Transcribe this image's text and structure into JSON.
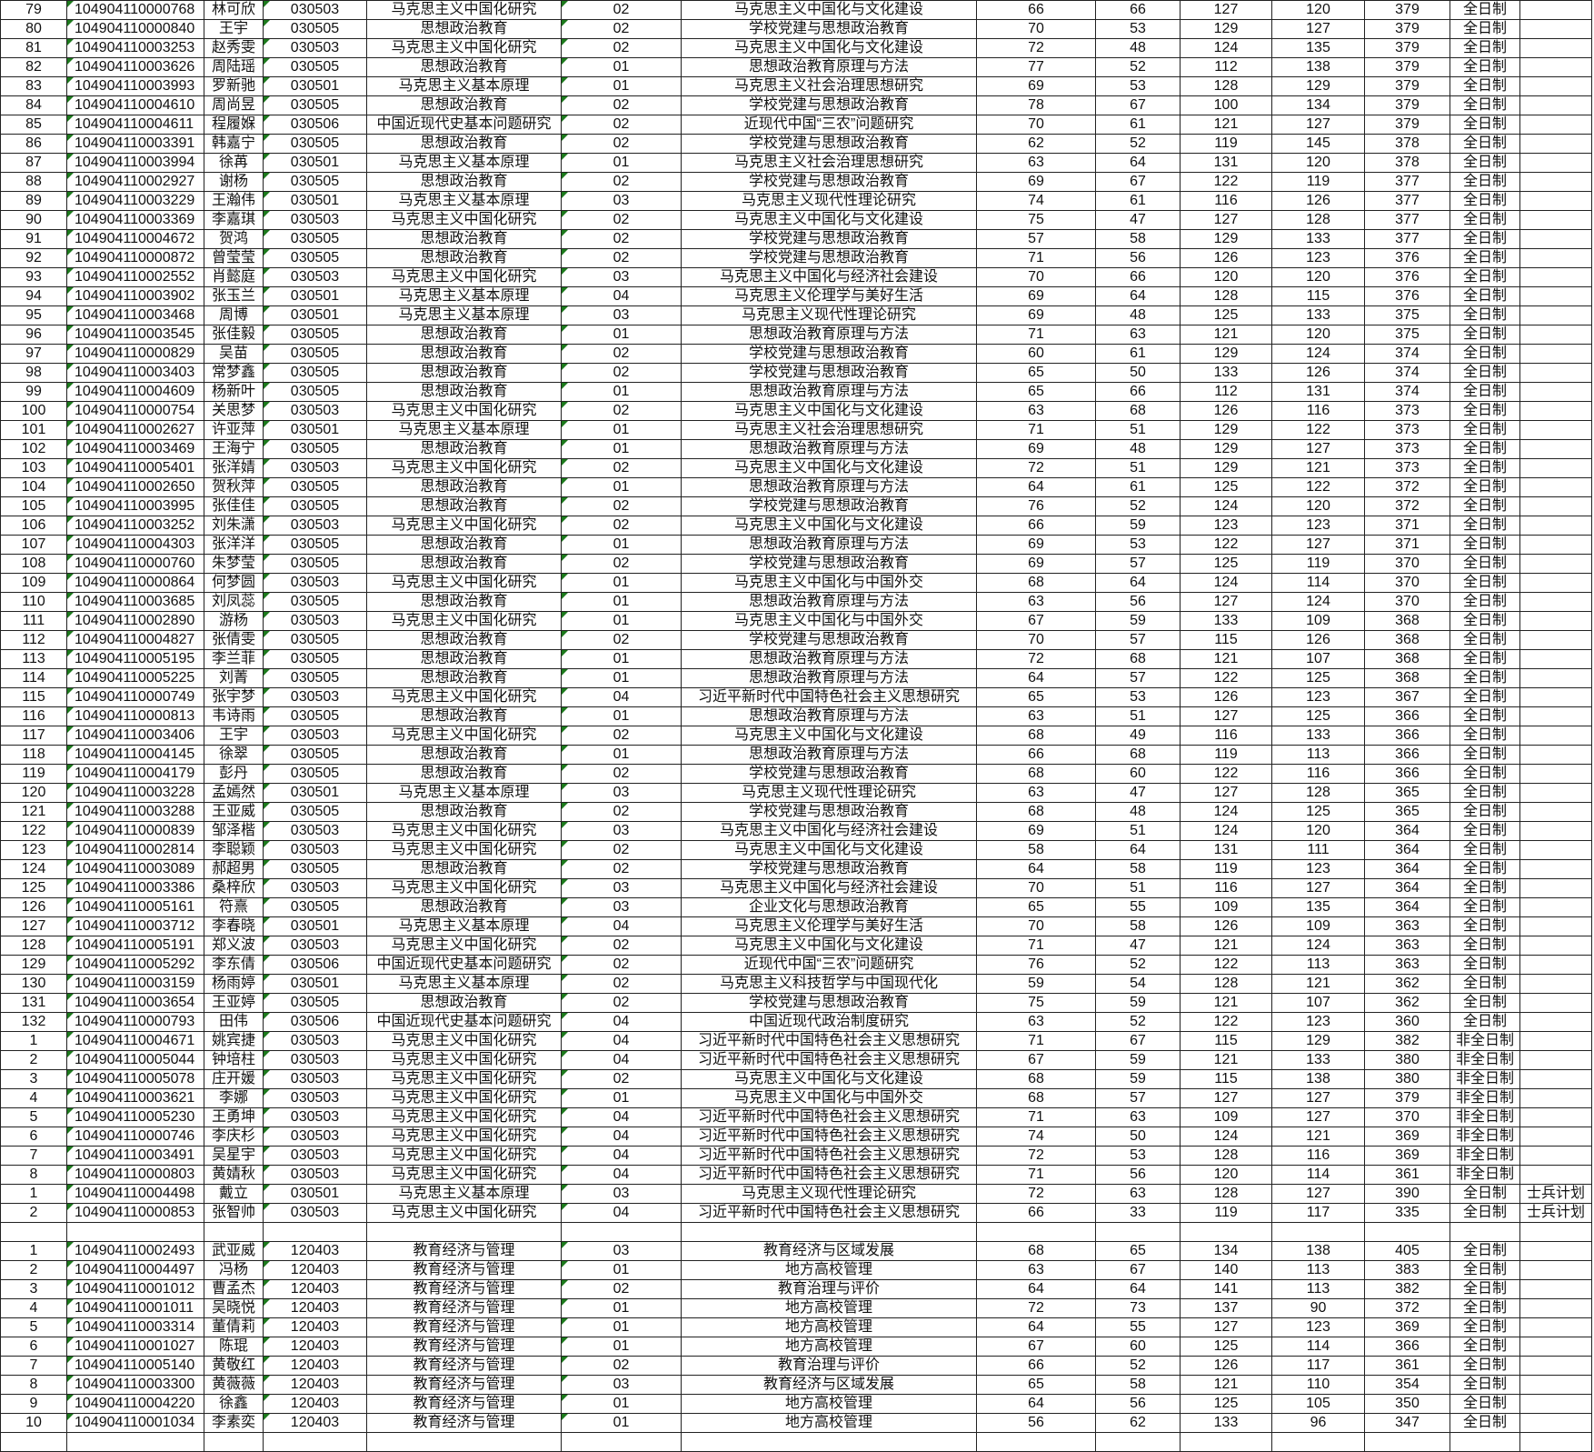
{
  "sheet": {
    "rows": [
      [
        "79",
        "104904110000768",
        "林可欣",
        "030503",
        "马克思主义中国化研究",
        "02",
        "马克思主义中国化与文化建设",
        "66",
        "66",
        "127",
        "120",
        "379",
        "全日制",
        ""
      ],
      [
        "80",
        "104904110000840",
        "王宇",
        "030505",
        "思想政治教育",
        "02",
        "学校党建与思想政治教育",
        "70",
        "53",
        "129",
        "127",
        "379",
        "全日制",
        ""
      ],
      [
        "81",
        "104904110003253",
        "赵秀雯",
        "030503",
        "马克思主义中国化研究",
        "02",
        "马克思主义中国化与文化建设",
        "72",
        "48",
        "124",
        "135",
        "379",
        "全日制",
        ""
      ],
      [
        "82",
        "104904110003626",
        "周陆瑶",
        "030505",
        "思想政治教育",
        "01",
        "思想政治教育原理与方法",
        "77",
        "52",
        "112",
        "138",
        "379",
        "全日制",
        ""
      ],
      [
        "83",
        "104904110003993",
        "罗新驰",
        "030501",
        "马克思主义基本原理",
        "01",
        "马克思主义社会治理思想研究",
        "69",
        "53",
        "128",
        "129",
        "379",
        "全日制",
        ""
      ],
      [
        "84",
        "104904110004610",
        "周尚昱",
        "030505",
        "思想政治教育",
        "02",
        "学校党建与思想政治教育",
        "78",
        "67",
        "100",
        "134",
        "379",
        "全日制",
        ""
      ],
      [
        "85",
        "104904110004611",
        "程履媬",
        "030506",
        "中国近现代史基本问题研究",
        "02",
        "近现代中国“三农”问题研究",
        "70",
        "61",
        "121",
        "127",
        "379",
        "全日制",
        ""
      ],
      [
        "86",
        "104904110003391",
        "韩嘉宁",
        "030505",
        "思想政治教育",
        "02",
        "学校党建与思想政治教育",
        "62",
        "52",
        "119",
        "145",
        "378",
        "全日制",
        ""
      ],
      [
        "87",
        "104904110003994",
        "徐苒",
        "030501",
        "马克思主义基本原理",
        "01",
        "马克思主义社会治理思想研究",
        "63",
        "64",
        "131",
        "120",
        "378",
        "全日制",
        ""
      ],
      [
        "88",
        "104904110002927",
        "谢杨",
        "030505",
        "思想政治教育",
        "02",
        "学校党建与思想政治教育",
        "69",
        "67",
        "122",
        "119",
        "377",
        "全日制",
        ""
      ],
      [
        "89",
        "104904110003229",
        "王瀚伟",
        "030501",
        "马克思主义基本原理",
        "03",
        "马克思主义现代性理论研究",
        "74",
        "61",
        "116",
        "126",
        "377",
        "全日制",
        ""
      ],
      [
        "90",
        "104904110003369",
        "李嘉琪",
        "030503",
        "马克思主义中国化研究",
        "02",
        "马克思主义中国化与文化建设",
        "75",
        "47",
        "127",
        "128",
        "377",
        "全日制",
        ""
      ],
      [
        "91",
        "104904110004672",
        "贺鸿",
        "030505",
        "思想政治教育",
        "02",
        "学校党建与思想政治教育",
        "57",
        "58",
        "129",
        "133",
        "377",
        "全日制",
        ""
      ],
      [
        "92",
        "104904110000872",
        "曾莹莹",
        "030505",
        "思想政治教育",
        "02",
        "学校党建与思想政治教育",
        "71",
        "56",
        "126",
        "123",
        "376",
        "全日制",
        ""
      ],
      [
        "93",
        "104904110002552",
        "肖懿庭",
        "030503",
        "马克思主义中国化研究",
        "03",
        "马克思主义中国化与经济社会建设",
        "70",
        "66",
        "120",
        "120",
        "376",
        "全日制",
        ""
      ],
      [
        "94",
        "104904110003902",
        "张玉兰",
        "030501",
        "马克思主义基本原理",
        "04",
        "马克思主义伦理学与美好生活",
        "69",
        "64",
        "128",
        "115",
        "376",
        "全日制",
        ""
      ],
      [
        "95",
        "104904110003468",
        "周博",
        "030501",
        "马克思主义基本原理",
        "03",
        "马克思主义现代性理论研究",
        "69",
        "48",
        "125",
        "133",
        "375",
        "全日制",
        ""
      ],
      [
        "96",
        "104904110003545",
        "张佳毅",
        "030505",
        "思想政治教育",
        "01",
        "思想政治教育原理与方法",
        "71",
        "63",
        "121",
        "120",
        "375",
        "全日制",
        ""
      ],
      [
        "97",
        "104904110000829",
        "吴苗",
        "030505",
        "思想政治教育",
        "02",
        "学校党建与思想政治教育",
        "60",
        "61",
        "129",
        "124",
        "374",
        "全日制",
        ""
      ],
      [
        "98",
        "104904110003403",
        "常梦鑫",
        "030505",
        "思想政治教育",
        "02",
        "学校党建与思想政治教育",
        "65",
        "50",
        "133",
        "126",
        "374",
        "全日制",
        ""
      ],
      [
        "99",
        "104904110004609",
        "杨新叶",
        "030505",
        "思想政治教育",
        "01",
        "思想政治教育原理与方法",
        "65",
        "66",
        "112",
        "131",
        "374",
        "全日制",
        ""
      ],
      [
        "100",
        "104904110000754",
        "关思梦",
        "030503",
        "马克思主义中国化研究",
        "02",
        "马克思主义中国化与文化建设",
        "63",
        "68",
        "126",
        "116",
        "373",
        "全日制",
        ""
      ],
      [
        "101",
        "104904110002627",
        "许亚萍",
        "030501",
        "马克思主义基本原理",
        "01",
        "马克思主义社会治理思想研究",
        "71",
        "51",
        "129",
        "122",
        "373",
        "全日制",
        ""
      ],
      [
        "102",
        "104904110003469",
        "王海宁",
        "030505",
        "思想政治教育",
        "01",
        "思想政治教育原理与方法",
        "69",
        "48",
        "129",
        "127",
        "373",
        "全日制",
        ""
      ],
      [
        "103",
        "104904110005401",
        "张洋婧",
        "030503",
        "马克思主义中国化研究",
        "02",
        "马克思主义中国化与文化建设",
        "72",
        "51",
        "129",
        "121",
        "373",
        "全日制",
        ""
      ],
      [
        "104",
        "104904110002650",
        "贺秋萍",
        "030505",
        "思想政治教育",
        "01",
        "思想政治教育原理与方法",
        "64",
        "61",
        "125",
        "122",
        "372",
        "全日制",
        ""
      ],
      [
        "105",
        "104904110003995",
        "张佳佳",
        "030505",
        "思想政治教育",
        "02",
        "学校党建与思想政治教育",
        "76",
        "52",
        "124",
        "120",
        "372",
        "全日制",
        ""
      ],
      [
        "106",
        "104904110003252",
        "刘朱潇",
        "030503",
        "马克思主义中国化研究",
        "02",
        "马克思主义中国化与文化建设",
        "66",
        "59",
        "123",
        "123",
        "371",
        "全日制",
        ""
      ],
      [
        "107",
        "104904110004303",
        "张洋洋",
        "030505",
        "思想政治教育",
        "01",
        "思想政治教育原理与方法",
        "69",
        "53",
        "122",
        "127",
        "371",
        "全日制",
        ""
      ],
      [
        "108",
        "104904110000760",
        "朱梦莹",
        "030505",
        "思想政治教育",
        "02",
        "学校党建与思想政治教育",
        "69",
        "57",
        "125",
        "119",
        "370",
        "全日制",
        ""
      ],
      [
        "109",
        "104904110000864",
        "何梦圆",
        "030503",
        "马克思主义中国化研究",
        "01",
        "马克思主义中国化与中国外交",
        "68",
        "64",
        "124",
        "114",
        "370",
        "全日制",
        ""
      ],
      [
        "110",
        "104904110003685",
        "刘凤蕊",
        "030505",
        "思想政治教育",
        "01",
        "思想政治教育原理与方法",
        "63",
        "56",
        "127",
        "124",
        "370",
        "全日制",
        ""
      ],
      [
        "111",
        "104904110002890",
        "游杨",
        "030503",
        "马克思主义中国化研究",
        "01",
        "马克思主义中国化与中国外交",
        "67",
        "59",
        "133",
        "109",
        "368",
        "全日制",
        ""
      ],
      [
        "112",
        "104904110004827",
        "张倩雯",
        "030505",
        "思想政治教育",
        "02",
        "学校党建与思想政治教育",
        "70",
        "57",
        "115",
        "126",
        "368",
        "全日制",
        ""
      ],
      [
        "113",
        "104904110005195",
        "李兰菲",
        "030505",
        "思想政治教育",
        "01",
        "思想政治教育原理与方法",
        "72",
        "68",
        "121",
        "107",
        "368",
        "全日制",
        ""
      ],
      [
        "114",
        "104904110005225",
        "刘菁",
        "030505",
        "思想政治教育",
        "01",
        "思想政治教育原理与方法",
        "64",
        "57",
        "122",
        "125",
        "368",
        "全日制",
        ""
      ],
      [
        "115",
        "104904110000749",
        "张宇梦",
        "030503",
        "马克思主义中国化研究",
        "04",
        "习近平新时代中国特色社会主义思想研究",
        "65",
        "53",
        "126",
        "123",
        "367",
        "全日制",
        ""
      ],
      [
        "116",
        "104904110000813",
        "韦诗雨",
        "030505",
        "思想政治教育",
        "01",
        "思想政治教育原理与方法",
        "63",
        "51",
        "127",
        "125",
        "366",
        "全日制",
        ""
      ],
      [
        "117",
        "104904110003406",
        "王宇",
        "030503",
        "马克思主义中国化研究",
        "02",
        "马克思主义中国化与文化建设",
        "68",
        "49",
        "116",
        "133",
        "366",
        "全日制",
        ""
      ],
      [
        "118",
        "104904110004145",
        "徐翠",
        "030505",
        "思想政治教育",
        "01",
        "思想政治教育原理与方法",
        "66",
        "68",
        "119",
        "113",
        "366",
        "全日制",
        ""
      ],
      [
        "119",
        "104904110004179",
        "彭丹",
        "030505",
        "思想政治教育",
        "02",
        "学校党建与思想政治教育",
        "68",
        "60",
        "122",
        "116",
        "366",
        "全日制",
        ""
      ],
      [
        "120",
        "104904110003228",
        "孟嫣然",
        "030501",
        "马克思主义基本原理",
        "03",
        "马克思主义现代性理论研究",
        "63",
        "47",
        "127",
        "128",
        "365",
        "全日制",
        ""
      ],
      [
        "121",
        "104904110003288",
        "王亚威",
        "030505",
        "思想政治教育",
        "02",
        "学校党建与思想政治教育",
        "68",
        "48",
        "124",
        "125",
        "365",
        "全日制",
        ""
      ],
      [
        "122",
        "104904110000839",
        "邹泽楷",
        "030503",
        "马克思主义中国化研究",
        "03",
        "马克思主义中国化与经济社会建设",
        "69",
        "51",
        "124",
        "120",
        "364",
        "全日制",
        ""
      ],
      [
        "123",
        "104904110002814",
        "李聪颖",
        "030503",
        "马克思主义中国化研究",
        "02",
        "马克思主义中国化与文化建设",
        "58",
        "64",
        "131",
        "111",
        "364",
        "全日制",
        ""
      ],
      [
        "124",
        "104904110003089",
        "郝超男",
        "030505",
        "思想政治教育",
        "02",
        "学校党建与思想政治教育",
        "64",
        "58",
        "119",
        "123",
        "364",
        "全日制",
        ""
      ],
      [
        "125",
        "104904110003386",
        "桑梓欣",
        "030503",
        "马克思主义中国化研究",
        "03",
        "马克思主义中国化与经济社会建设",
        "70",
        "51",
        "116",
        "127",
        "364",
        "全日制",
        ""
      ],
      [
        "126",
        "104904110005161",
        "符熹",
        "030505",
        "思想政治教育",
        "03",
        "企业文化与思想政治教育",
        "65",
        "55",
        "109",
        "135",
        "364",
        "全日制",
        ""
      ],
      [
        "127",
        "104904110003712",
        "李春晓",
        "030501",
        "马克思主义基本原理",
        "04",
        "马克思主义伦理学与美好生活",
        "70",
        "58",
        "126",
        "109",
        "363",
        "全日制",
        ""
      ],
      [
        "128",
        "104904110005191",
        "郑义波",
        "030503",
        "马克思主义中国化研究",
        "02",
        "马克思主义中国化与文化建设",
        "71",
        "47",
        "121",
        "124",
        "363",
        "全日制",
        ""
      ],
      [
        "129",
        "104904110005292",
        "李东倩",
        "030506",
        "中国近现代史基本问题研究",
        "02",
        "近现代中国“三农”问题研究",
        "76",
        "52",
        "122",
        "113",
        "363",
        "全日制",
        ""
      ],
      [
        "130",
        "104904110003159",
        "杨雨婷",
        "030501",
        "马克思主义基本原理",
        "02",
        "马克思主义科技哲学与中国现代化",
        "59",
        "54",
        "128",
        "121",
        "362",
        "全日制",
        ""
      ],
      [
        "131",
        "104904110003654",
        "王亚婷",
        "030505",
        "思想政治教育",
        "02",
        "学校党建与思想政治教育",
        "75",
        "59",
        "121",
        "107",
        "362",
        "全日制",
        ""
      ],
      [
        "132",
        "104904110000793",
        "田伟",
        "030506",
        "中国近现代史基本问题研究",
        "04",
        "中国近现代政治制度研究",
        "63",
        "52",
        "122",
        "123",
        "360",
        "全日制",
        ""
      ],
      [
        "1",
        "104904110004671",
        "姚宾捷",
        "030503",
        "马克思主义中国化研究",
        "04",
        "习近平新时代中国特色社会主义思想研究",
        "71",
        "67",
        "115",
        "129",
        "382",
        "非全日制",
        ""
      ],
      [
        "2",
        "104904110005044",
        "钟培柱",
        "030503",
        "马克思主义中国化研究",
        "04",
        "习近平新时代中国特色社会主义思想研究",
        "67",
        "59",
        "121",
        "133",
        "380",
        "非全日制",
        ""
      ],
      [
        "3",
        "104904110005078",
        "庄开媛",
        "030503",
        "马克思主义中国化研究",
        "02",
        "马克思主义中国化与文化建设",
        "68",
        "59",
        "115",
        "138",
        "380",
        "非全日制",
        ""
      ],
      [
        "4",
        "104904110003621",
        "李娜",
        "030503",
        "马克思主义中国化研究",
        "01",
        "马克思主义中国化与中国外交",
        "68",
        "57",
        "127",
        "127",
        "379",
        "非全日制",
        ""
      ],
      [
        "5",
        "104904110005230",
        "王勇坤",
        "030503",
        "马克思主义中国化研究",
        "04",
        "习近平新时代中国特色社会主义思想研究",
        "71",
        "63",
        "109",
        "127",
        "370",
        "非全日制",
        ""
      ],
      [
        "6",
        "104904110000746",
        "李庆杉",
        "030503",
        "马克思主义中国化研究",
        "04",
        "习近平新时代中国特色社会主义思想研究",
        "74",
        "50",
        "124",
        "121",
        "369",
        "非全日制",
        ""
      ],
      [
        "7",
        "104904110003491",
        "吴星宇",
        "030503",
        "马克思主义中国化研究",
        "04",
        "习近平新时代中国特色社会主义思想研究",
        "72",
        "53",
        "128",
        "116",
        "369",
        "非全日制",
        ""
      ],
      [
        "8",
        "104904110000803",
        "黄婧秋",
        "030503",
        "马克思主义中国化研究",
        "04",
        "习近平新时代中国特色社会主义思想研究",
        "71",
        "56",
        "120",
        "114",
        "361",
        "非全日制",
        ""
      ],
      [
        "1",
        "104904110004498",
        "戴立",
        "030501",
        "马克思主义基本原理",
        "03",
        "马克思主义现代性理论研究",
        "72",
        "63",
        "128",
        "127",
        "390",
        "全日制",
        "士兵计划"
      ],
      [
        "2",
        "104904110000853",
        "张智帅",
        "030503",
        "马克思主义中国化研究",
        "04",
        "习近平新时代中国特色社会主义思想研究",
        "66",
        "33",
        "119",
        "117",
        "335",
        "全日制",
        "士兵计划"
      ],
      null,
      [
        "1",
        "104904110002493",
        "武亚威",
        "120403",
        "教育经济与管理",
        "03",
        "教育经济与区域发展",
        "68",
        "65",
        "134",
        "138",
        "405",
        "全日制",
        ""
      ],
      [
        "2",
        "104904110004497",
        "冯杨",
        "120403",
        "教育经济与管理",
        "01",
        "地方高校管理",
        "63",
        "67",
        "140",
        "113",
        "383",
        "全日制",
        ""
      ],
      [
        "3",
        "104904110001012",
        "曹孟杰",
        "120403",
        "教育经济与管理",
        "02",
        "教育治理与评价",
        "64",
        "64",
        "141",
        "113",
        "382",
        "全日制",
        ""
      ],
      [
        "4",
        "104904110001011",
        "吴晓悦",
        "120403",
        "教育经济与管理",
        "01",
        "地方高校管理",
        "72",
        "73",
        "137",
        "90",
        "372",
        "全日制",
        ""
      ],
      [
        "5",
        "104904110003314",
        "董倩莉",
        "120403",
        "教育经济与管理",
        "01",
        "地方高校管理",
        "64",
        "55",
        "127",
        "123",
        "369",
        "全日制",
        ""
      ],
      [
        "6",
        "104904110001027",
        "陈琨",
        "120403",
        "教育经济与管理",
        "01",
        "地方高校管理",
        "67",
        "60",
        "125",
        "114",
        "366",
        "全日制",
        ""
      ],
      [
        "7",
        "104904110005140",
        "黄敬红",
        "120403",
        "教育经济与管理",
        "02",
        "教育治理与评价",
        "66",
        "52",
        "126",
        "117",
        "361",
        "全日制",
        ""
      ],
      [
        "8",
        "104904110003300",
        "黄薇薇",
        "120403",
        "教育经济与管理",
        "03",
        "教育经济与区域发展",
        "65",
        "58",
        "121",
        "110",
        "354",
        "全日制",
        ""
      ],
      [
        "9",
        "104904110004220",
        "徐鑫",
        "120403",
        "教育经济与管理",
        "01",
        "地方高校管理",
        "64",
        "56",
        "125",
        "105",
        "350",
        "全日制",
        ""
      ],
      [
        "10",
        "104904110001034",
        "李素奕",
        "120403",
        "教育经济与管理",
        "01",
        "地方高校管理",
        "56",
        "62",
        "133",
        "96",
        "347",
        "全日制",
        ""
      ]
    ],
    "marker_color": "#1d7a1d"
  }
}
